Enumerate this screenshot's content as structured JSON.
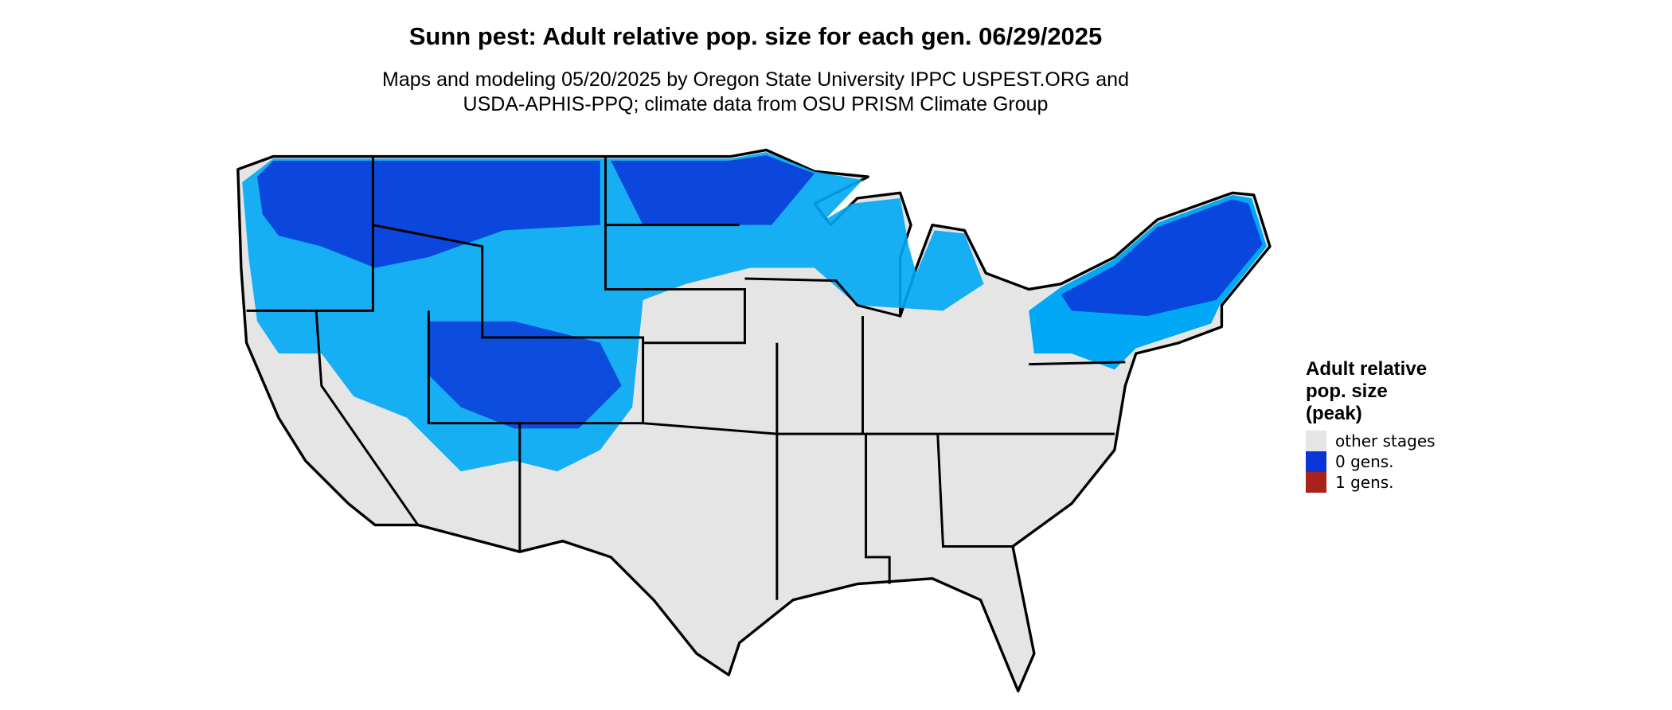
{
  "title": "Sunn pest: Adult relative pop. size for each gen. 06/29/2025",
  "subtitle": [
    "Maps and modeling 05/20/2025 by Oregon State University IPPC USPEST.ORG and",
    "USDA-APHIS-PPQ; climate data from OSU PRISM Climate Group"
  ],
  "legend": {
    "title": [
      "Adult relative",
      "pop. size",
      "(peak)"
    ],
    "items": [
      {
        "label": "other stages",
        "color": "#e5e5e5"
      },
      {
        "label": "0 gens.",
        "color": "#0a35d8"
      },
      {
        "label": "1 gens.",
        "color": "#a8231b"
      }
    ]
  }
}
